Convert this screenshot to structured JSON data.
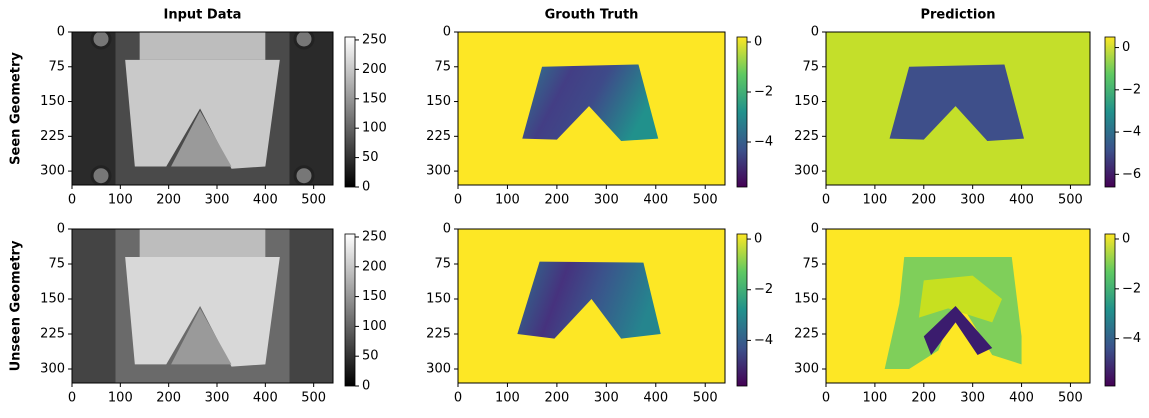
{
  "chart_data": [
    {
      "type": "heatmap",
      "title": "Input Data",
      "ylabel": "Seen Geometry",
      "colormap": "gray",
      "xlim": [
        0,
        540
      ],
      "ylim": [
        330,
        0
      ],
      "xticks": [
        0,
        100,
        200,
        300,
        400,
        500
      ],
      "yticks": [
        0,
        75,
        150,
        225,
        300
      ],
      "clim": [
        0,
        255
      ],
      "cticks": [
        0,
        50,
        100,
        150,
        200,
        250
      ]
    },
    {
      "type": "heatmap",
      "title": "Grouth Truth",
      "colormap": "viridis",
      "xlim": [
        0,
        540
      ],
      "ylim": [
        330,
        0
      ],
      "xticks": [
        0,
        100,
        200,
        300,
        400,
        500
      ],
      "yticks": [
        0,
        75,
        150,
        225,
        300
      ],
      "clim": [
        -5.8,
        0.2
      ],
      "cticks": [
        {
          "value": -4,
          "label": "−4"
        },
        {
          "value": -2,
          "label": "−2"
        },
        0
      ]
    },
    {
      "type": "heatmap",
      "title": "Prediction",
      "colormap": "viridis",
      "xlim": [
        0,
        540
      ],
      "ylim": [
        330,
        0
      ],
      "xticks": [
        0,
        100,
        200,
        300,
        400,
        500
      ],
      "yticks": [
        0,
        75,
        150,
        225,
        300
      ],
      "clim": [
        -6.6,
        0.5
      ],
      "cticks": [
        {
          "value": -6,
          "label": "−6"
        },
        {
          "value": -4,
          "label": "−4"
        },
        {
          "value": -2,
          "label": "−2"
        },
        0
      ]
    },
    {
      "type": "heatmap",
      "ylabel": "Unseen Geometry",
      "colormap": "gray",
      "xlim": [
        0,
        540
      ],
      "ylim": [
        330,
        0
      ],
      "xticks": [
        0,
        100,
        200,
        300,
        400,
        500
      ],
      "yticks": [
        0,
        75,
        150,
        225,
        300
      ],
      "clim": [
        0,
        255
      ],
      "cticks": [
        0,
        50,
        100,
        150,
        200,
        250
      ]
    },
    {
      "type": "heatmap",
      "colormap": "viridis",
      "xlim": [
        0,
        540
      ],
      "ylim": [
        330,
        0
      ],
      "xticks": [
        0,
        100,
        200,
        300,
        400,
        500
      ],
      "yticks": [
        0,
        75,
        150,
        225,
        300
      ],
      "clim": [
        -5.8,
        0.2
      ],
      "cticks": [
        {
          "value": -4,
          "label": "−4"
        },
        {
          "value": -2,
          "label": "−2"
        },
        0
      ]
    },
    {
      "type": "heatmap",
      "colormap": "viridis",
      "xlim": [
        0,
        540
      ],
      "ylim": [
        330,
        0
      ],
      "xticks": [
        0,
        100,
        200,
        300,
        400,
        500
      ],
      "yticks": [
        0,
        75,
        150,
        225,
        300
      ],
      "clim": [
        -5.9,
        0.2
      ],
      "cticks": [
        {
          "value": -4,
          "label": "−4"
        },
        {
          "value": -2,
          "label": "−2"
        },
        0
      ]
    }
  ]
}
